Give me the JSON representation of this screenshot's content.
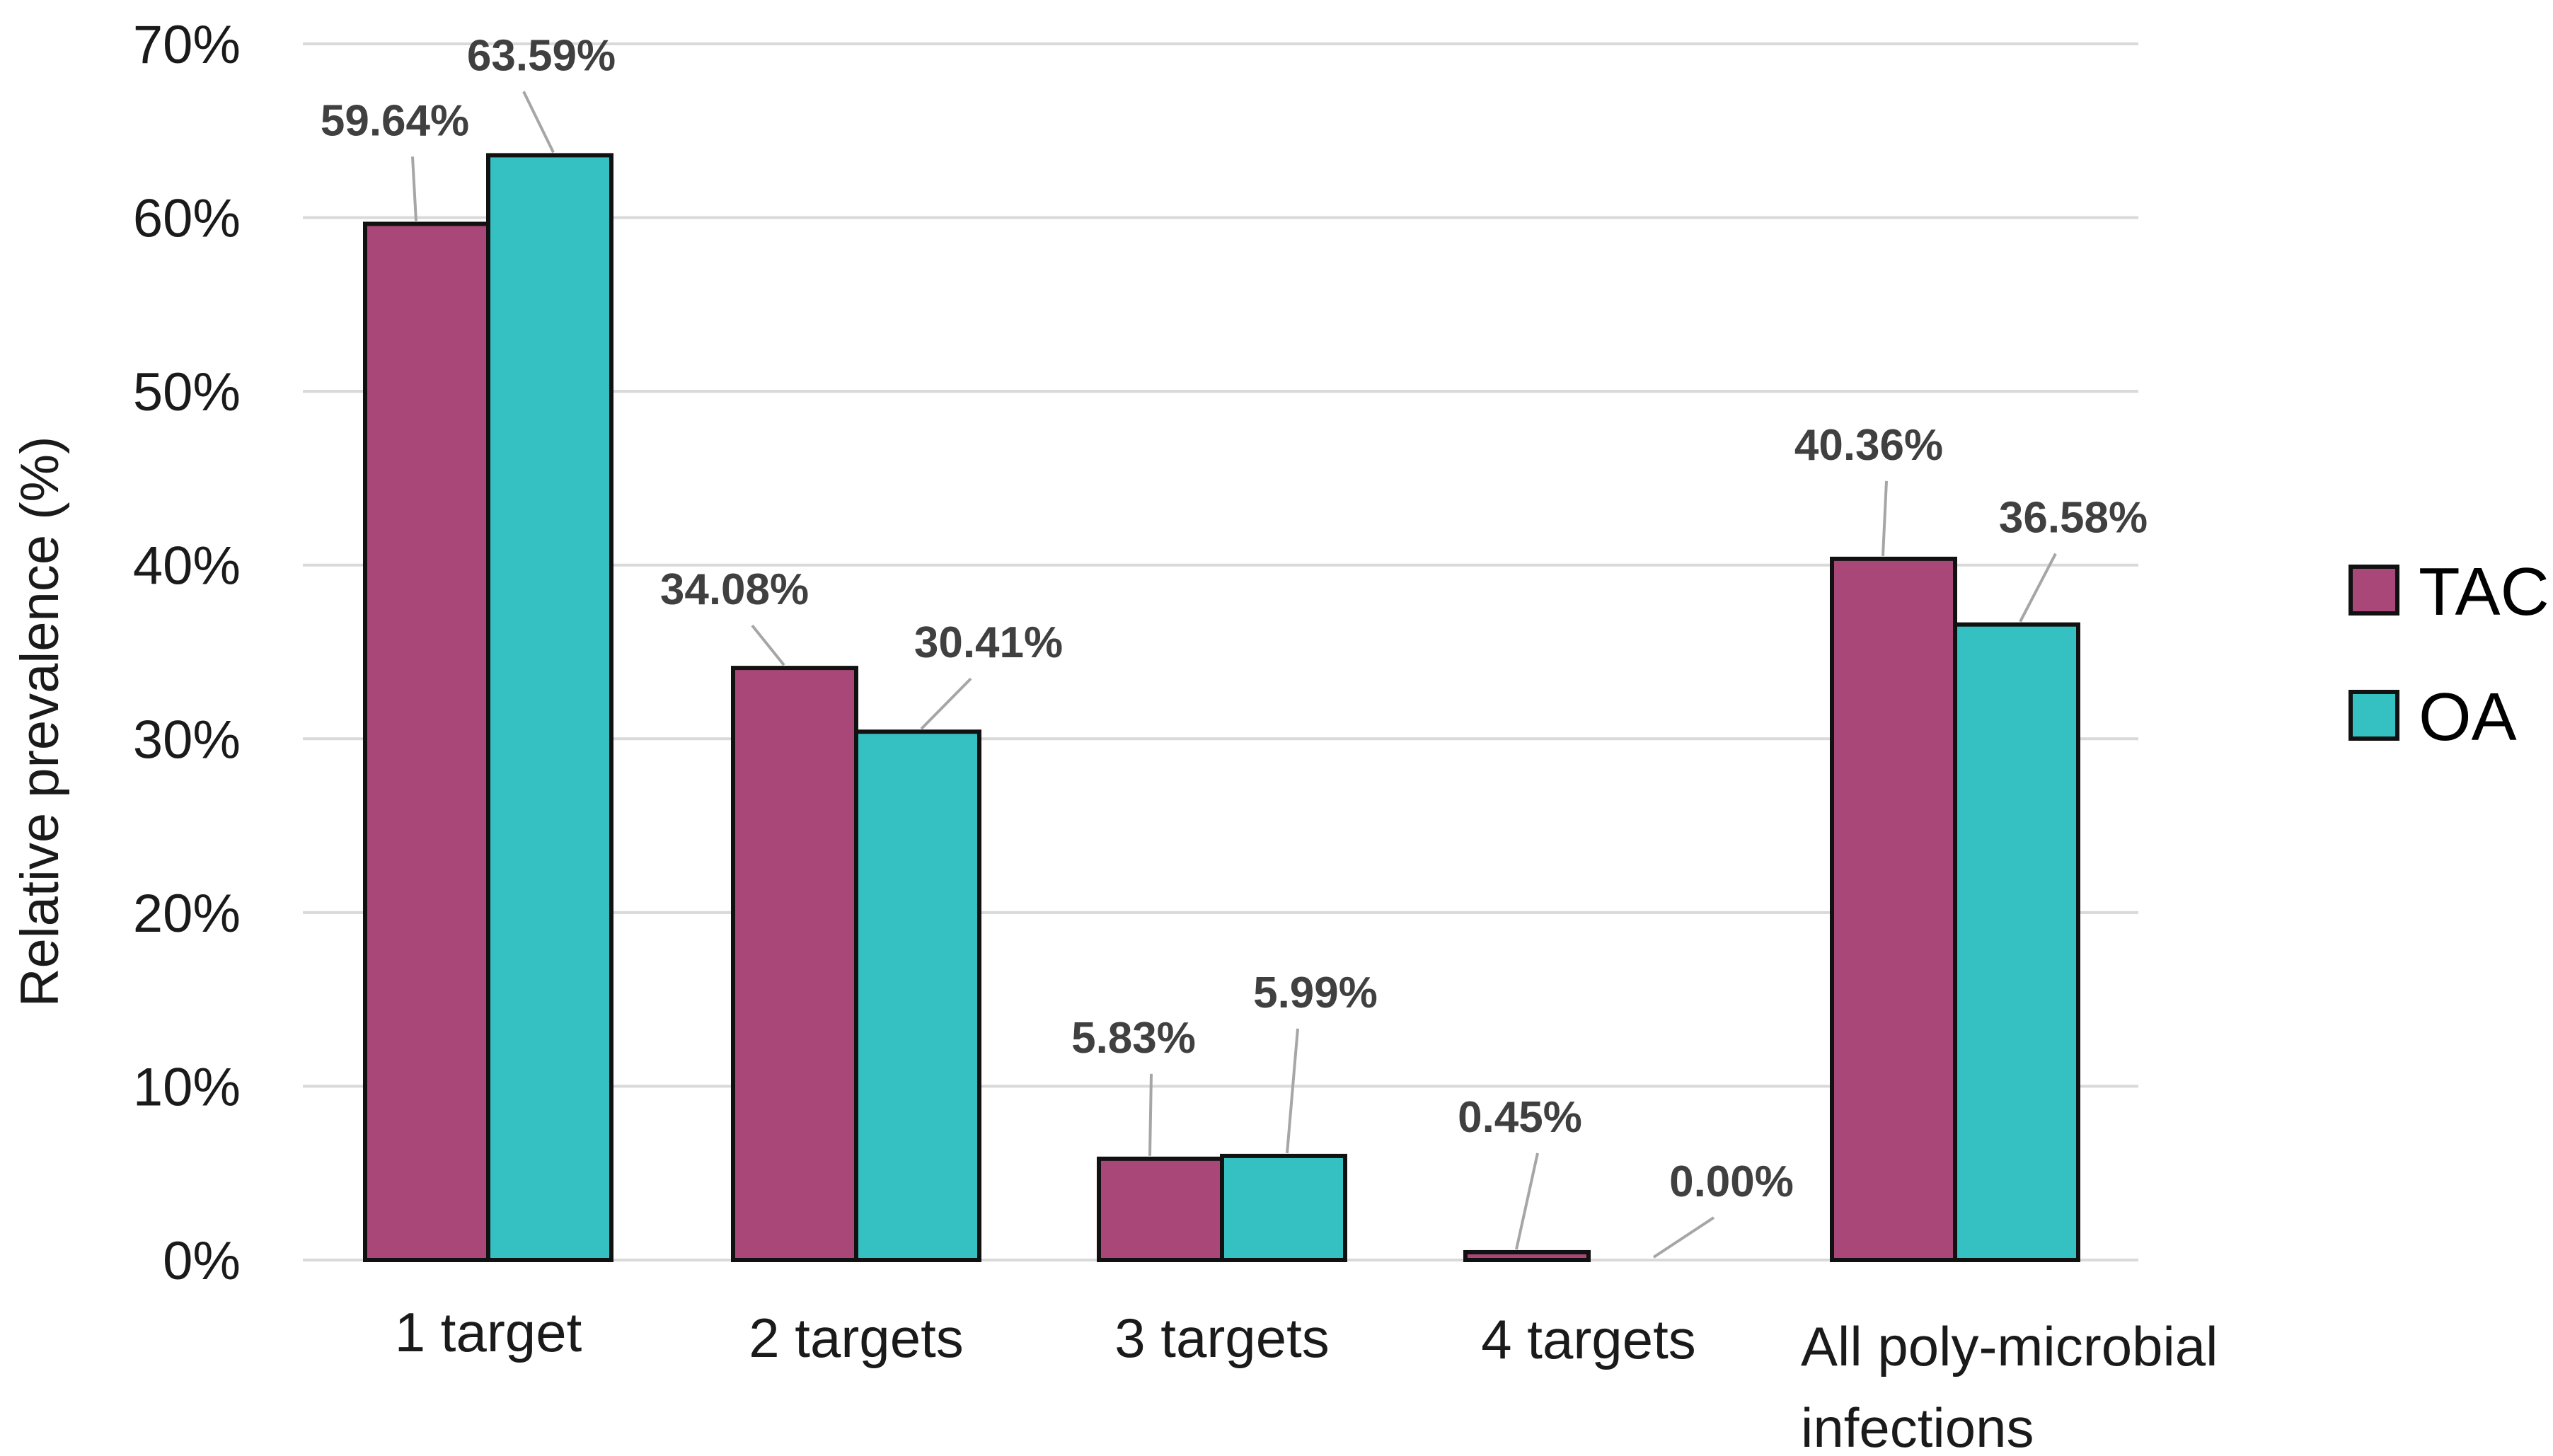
{
  "chart_data": {
    "type": "bar",
    "ylabel": "Relative prevalence (%)",
    "xlabel": "",
    "ylim": [
      0,
      70
    ],
    "yticks": [
      "0%",
      "10%",
      "20%",
      "30%",
      "40%",
      "50%",
      "60%",
      "70%"
    ],
    "ytick_values": [
      0,
      10,
      20,
      30,
      40,
      50,
      60,
      70
    ],
    "grid": true,
    "legend_position": "right",
    "categories": [
      [
        "1 target"
      ],
      [
        "2 targets"
      ],
      [
        "3 targets"
      ],
      [
        "4 targets"
      ],
      [
        "All poly-microbial",
        "infections"
      ]
    ],
    "series": [
      {
        "name": "TAC",
        "color": "#A94878",
        "values": [
          59.64,
          34.08,
          5.83,
          0.45,
          40.36
        ],
        "labels": [
          "59.64%",
          "34.08%",
          "5.83%",
          "0.45%",
          "40.36%"
        ]
      },
      {
        "name": "OA",
        "color": "#35C0C2",
        "values": [
          63.59,
          30.41,
          5.99,
          0.0,
          36.58
        ],
        "labels": [
          "63.59%",
          "30.41%",
          "5.99%",
          "0.00%",
          "36.58%"
        ]
      }
    ]
  }
}
